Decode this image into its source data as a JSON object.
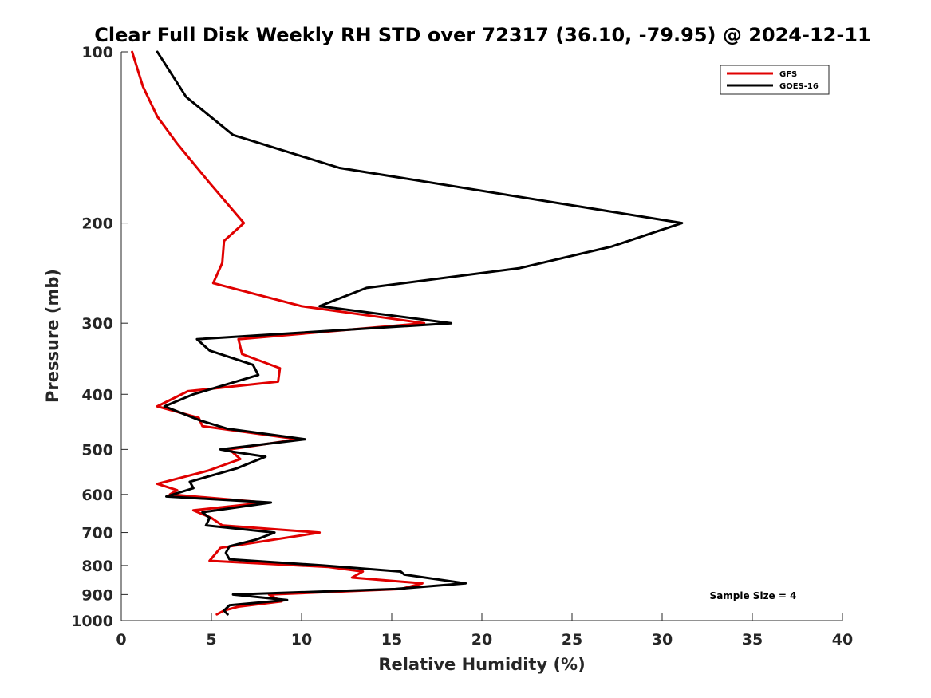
{
  "chart_data": {
    "type": "line",
    "title": "Clear Full Disk Weekly RH STD over 72317 (36.10, -79.95) @ 2024-12-11",
    "xlabel": "Relative Humidity (%)",
    "ylabel": "Pressure (mb)",
    "xlim": [
      0,
      40
    ],
    "ylim": [
      100,
      1000
    ],
    "yscale": "log",
    "yreversed": true,
    "xticks": [
      0,
      5,
      10,
      15,
      20,
      25,
      30,
      35,
      40
    ],
    "yticks": [
      100,
      200,
      300,
      400,
      500,
      600,
      700,
      800,
      900,
      1000
    ],
    "grid": false,
    "legend_position": "top-right",
    "annotation": "Sample Size = 4",
    "series": [
      {
        "name": "GFS",
        "color": "#e00000",
        "points": [
          [
            0.6,
            100
          ],
          [
            1.2,
            115
          ],
          [
            2.0,
            130
          ],
          [
            3.1,
            145
          ],
          [
            4.9,
            170
          ],
          [
            6.8,
            200
          ],
          [
            5.7,
            215
          ],
          [
            5.6,
            235
          ],
          [
            5.1,
            255
          ],
          [
            10.0,
            280
          ],
          [
            16.8,
            300
          ],
          [
            6.5,
            320
          ],
          [
            6.7,
            340
          ],
          [
            8.8,
            360
          ],
          [
            8.7,
            380
          ],
          [
            3.7,
            395
          ],
          [
            2.0,
            420
          ],
          [
            4.3,
            440
          ],
          [
            4.5,
            455
          ],
          [
            9.8,
            480
          ],
          [
            6.0,
            500
          ],
          [
            6.6,
            520
          ],
          [
            4.8,
            545
          ],
          [
            2.0,
            575
          ],
          [
            3.1,
            590
          ],
          [
            2.7,
            600
          ],
          [
            8.0,
            620
          ],
          [
            4.0,
            640
          ],
          [
            5.0,
            660
          ],
          [
            5.6,
            680
          ],
          [
            11.0,
            700
          ],
          [
            5.5,
            745
          ],
          [
            4.9,
            785
          ],
          [
            11.5,
            805
          ],
          [
            13.4,
            820
          ],
          [
            12.8,
            840
          ],
          [
            16.7,
            860
          ],
          [
            15.5,
            880
          ],
          [
            8.2,
            900
          ],
          [
            8.9,
            925
          ],
          [
            6.5,
            945
          ],
          [
            5.7,
            960
          ],
          [
            5.3,
            975
          ]
        ]
      },
      {
        "name": "GOES-16",
        "color": "#000000",
        "points": [
          [
            2.0,
            100
          ],
          [
            3.6,
            120
          ],
          [
            6.2,
            140
          ],
          [
            12.1,
            160
          ],
          [
            31.1,
            200
          ],
          [
            27.2,
            220
          ],
          [
            22.1,
            240
          ],
          [
            13.6,
            260
          ],
          [
            11.0,
            280
          ],
          [
            18.3,
            300
          ],
          [
            4.2,
            320
          ],
          [
            4.9,
            335
          ],
          [
            7.3,
            355
          ],
          [
            7.6,
            370
          ],
          [
            4.0,
            400
          ],
          [
            2.4,
            420
          ],
          [
            4.4,
            445
          ],
          [
            5.9,
            460
          ],
          [
            10.2,
            480
          ],
          [
            5.5,
            500
          ],
          [
            6.2,
            505
          ],
          [
            8.0,
            515
          ],
          [
            6.4,
            540
          ],
          [
            3.8,
            570
          ],
          [
            4.0,
            585
          ],
          [
            2.5,
            605
          ],
          [
            8.3,
            620
          ],
          [
            4.5,
            645
          ],
          [
            4.9,
            660
          ],
          [
            4.7,
            680
          ],
          [
            8.5,
            700
          ],
          [
            7.5,
            720
          ],
          [
            6.0,
            740
          ],
          [
            5.8,
            760
          ],
          [
            6.0,
            780
          ],
          [
            11.2,
            800
          ],
          [
            15.5,
            820
          ],
          [
            15.7,
            830
          ],
          [
            19.1,
            860
          ],
          [
            15.2,
            880
          ],
          [
            6.2,
            900
          ],
          [
            9.2,
            920
          ],
          [
            6.0,
            940
          ],
          [
            5.7,
            960
          ],
          [
            5.9,
            975
          ]
        ]
      }
    ]
  }
}
